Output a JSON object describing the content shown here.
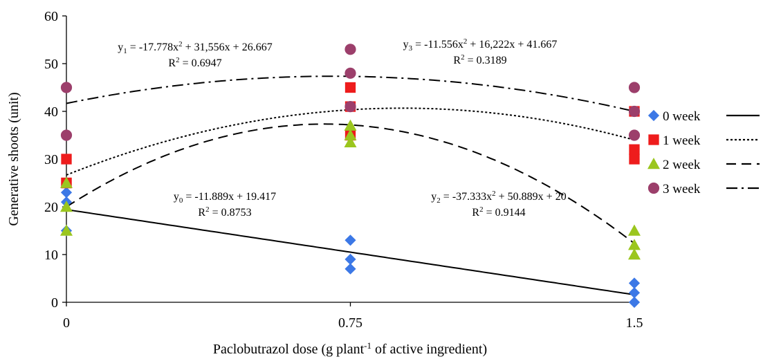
{
  "chart_data": {
    "type": "scatter",
    "xlabel": "Paclobutrazol dose (g plant",
    "xlabel_sup": "-1",
    "xlabel_tail": " of active ingredient)",
    "ylabel": "Generative shoots (unit)",
    "xlim": [
      0,
      1.5
    ],
    "ylim": [
      0,
      60
    ],
    "x_ticks": [
      0,
      0.75,
      1.5
    ],
    "x_tick_labels": [
      "0",
      "0.75",
      "1.5"
    ],
    "y_ticks": [
      0,
      10,
      20,
      30,
      40,
      50,
      60
    ],
    "y_tick_labels": [
      "0",
      "10",
      "20",
      "30",
      "40",
      "50",
      "60"
    ],
    "grid": false,
    "legend_placement": "right",
    "series": [
      {
        "name": "0 week",
        "marker": "diamond",
        "color": "#3C78E6",
        "line_style": "solid",
        "points": [
          [
            0,
            15
          ],
          [
            0,
            21
          ],
          [
            0,
            23
          ],
          [
            0.75,
            7
          ],
          [
            0.75,
            9
          ],
          [
            0.75,
            13
          ],
          [
            1.5,
            0
          ],
          [
            1.5,
            2
          ],
          [
            1.5,
            4
          ]
        ],
        "fit": {
          "a": 0,
          "b": -11.889,
          "c": 19.417
        }
      },
      {
        "name": "1 week",
        "marker": "square",
        "color": "#EE1C1C",
        "line_style": "dotted",
        "points": [
          [
            0,
            25
          ],
          [
            0,
            25
          ],
          [
            0,
            30
          ],
          [
            0.75,
            35
          ],
          [
            0.75,
            41
          ],
          [
            0.75,
            45
          ],
          [
            1.5,
            30
          ],
          [
            1.5,
            32
          ],
          [
            1.5,
            40
          ]
        ],
        "fit": {
          "a": -17.778,
          "b": 31.556,
          "c": 26.667
        }
      },
      {
        "name": "2 week",
        "marker": "triangle",
        "color": "#9BC61E",
        "line_style": "dashed",
        "points": [
          [
            0,
            15
          ],
          [
            0,
            20
          ],
          [
            0,
            25
          ],
          [
            0.75,
            33.5
          ],
          [
            0.75,
            35
          ],
          [
            0.75,
            37
          ],
          [
            1.5,
            10
          ],
          [
            1.5,
            12
          ],
          [
            1.5,
            15
          ]
        ],
        "fit": {
          "a": -37.333,
          "b": 50.889,
          "c": 20
        }
      },
      {
        "name": "3 week",
        "marker": "circle",
        "color": "#9C3F6B",
        "line_style": "dashdot",
        "points": [
          [
            0,
            35
          ],
          [
            0,
            45
          ],
          [
            0.75,
            41
          ],
          [
            0.75,
            48
          ],
          [
            0.75,
            53
          ],
          [
            1.5,
            35
          ],
          [
            1.5,
            40
          ],
          [
            1.5,
            45
          ]
        ],
        "fit": {
          "a": -11.556,
          "b": 16.222,
          "c": 41.667
        }
      }
    ],
    "annotations": [
      {
        "id": "y1",
        "pre": "y",
        "sub": "1",
        "eq": " = -17.778x",
        "sup": "2",
        "rest": " + 31,556x + 26.667",
        "r2": "0.6947"
      },
      {
        "id": "y3",
        "pre": "y",
        "sub": "3",
        "eq": " = -11.556x",
        "sup": "2",
        "rest": " + 16,222x + 41.667",
        "r2": "0.3189"
      },
      {
        "id": "y0",
        "pre": "y",
        "sub": "0",
        "eq": " = -11.889x + 19.417",
        "sup": "",
        "rest": "",
        "r2": "0.8753"
      },
      {
        "id": "y2",
        "pre": "y",
        "sub": "2",
        "eq": " = -37.333x",
        "sup": "2",
        "rest": " + 50.889x + 20",
        "r2": "0.9144"
      }
    ]
  }
}
